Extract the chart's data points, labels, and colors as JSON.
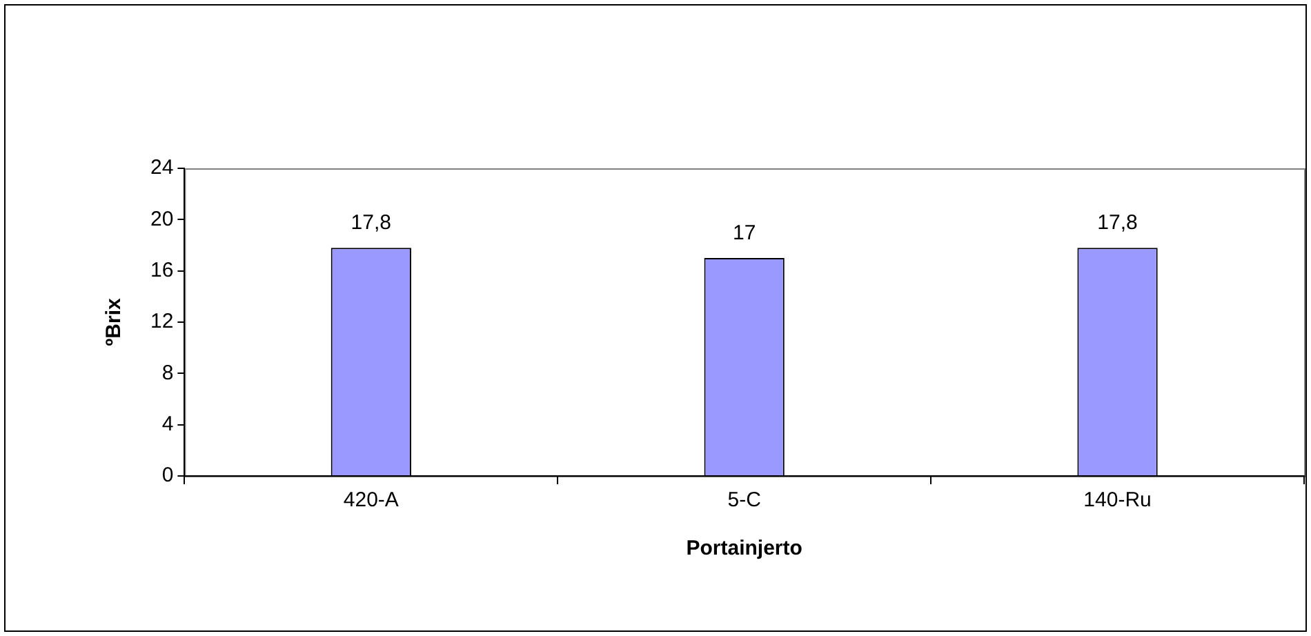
{
  "chart_data": {
    "type": "bar",
    "xlabel": "Portainjerto",
    "ylabel": "ºBrix",
    "categories": [
      "420-A",
      "5-C",
      "140-Ru"
    ],
    "series": [
      {
        "color": "#9999ff",
        "values": [
          17.8,
          17,
          17.8
        ],
        "value_labels": [
          "17,8",
          "17",
          "17,8"
        ]
      }
    ],
    "ylim": [
      0,
      24
    ],
    "yticks": [
      0,
      4,
      8,
      12,
      16,
      20,
      24
    ],
    "grid": false,
    "legend": false
  }
}
